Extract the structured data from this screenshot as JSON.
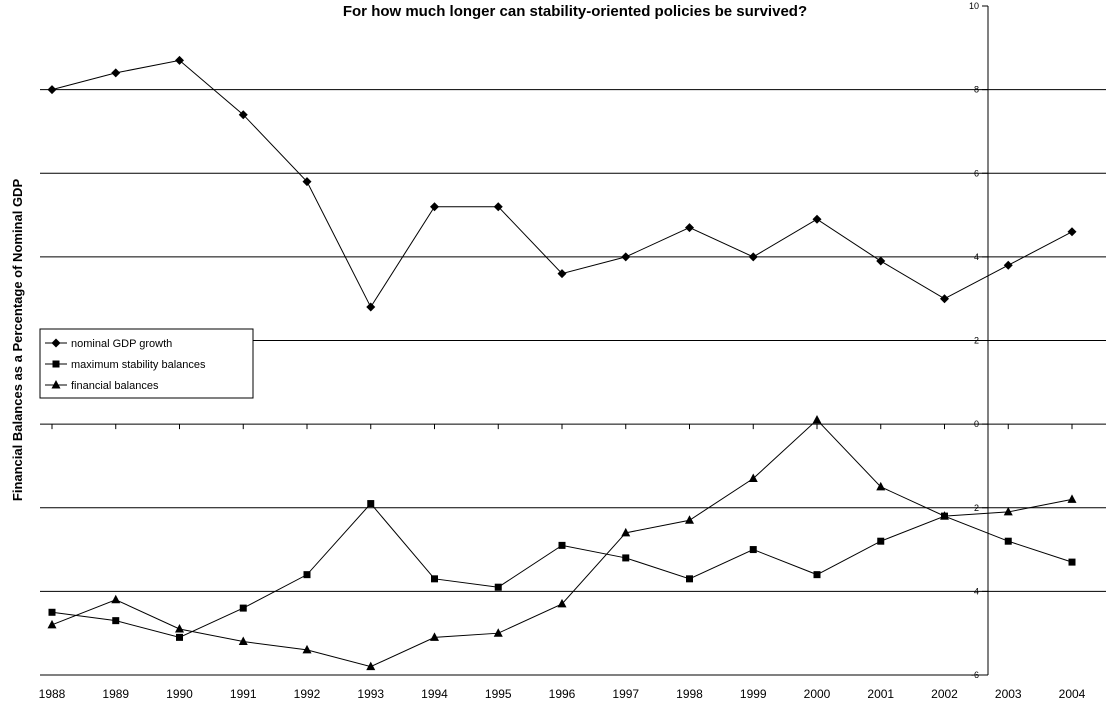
{
  "chart_data": {
    "type": "line",
    "title": "For how much longer can stability-oriented policies be survived?",
    "xlabel": "",
    "ylabel": "Financial Balances as a Percentage of Nominal GDP",
    "categories": [
      "1988",
      "1989",
      "1990",
      "1991",
      "1992",
      "1993",
      "1994",
      "1995",
      "1996",
      "1997",
      "1998",
      "1999",
      "2000",
      "2001",
      "2002",
      "2003",
      "2004"
    ],
    "y_tick_labels": [
      "-6",
      "4",
      "2",
      "0",
      "2",
      "4",
      "6",
      "8",
      "10"
    ],
    "y_tick_values": [
      -6,
      -4,
      -2,
      0,
      2,
      4,
      6,
      8,
      10
    ],
    "ylim": [
      -6,
      10
    ],
    "grid": "horizontal",
    "legend_position": "left",
    "series": [
      {
        "name": "nominal GDP growth",
        "marker": "diamond",
        "values": [
          8.0,
          8.4,
          8.7,
          7.4,
          5.8,
          2.8,
          5.2,
          5.2,
          3.6,
          4.0,
          4.7,
          4.0,
          4.9,
          3.9,
          3.0,
          3.8,
          4.6
        ]
      },
      {
        "name": "maximum stability balances",
        "marker": "square",
        "values": [
          -4.5,
          -4.7,
          -5.1,
          -4.4,
          -3.6,
          -1.9,
          -3.7,
          -3.9,
          -2.9,
          -3.2,
          -3.7,
          -3.0,
          -3.6,
          -2.8,
          -2.2,
          -2.8,
          -3.3
        ]
      },
      {
        "name": "financial balances",
        "marker": "triangle",
        "values": [
          -4.8,
          -4.2,
          -4.9,
          -5.2,
          -5.4,
          -5.8,
          -5.1,
          -5.0,
          -4.3,
          -2.6,
          -2.3,
          -1.3,
          0.1,
          -1.5,
          -2.2,
          -2.1,
          -1.8
        ]
      }
    ],
    "colors": {
      "line": "#000000",
      "grid": "#000000",
      "axis": "#000000"
    }
  }
}
